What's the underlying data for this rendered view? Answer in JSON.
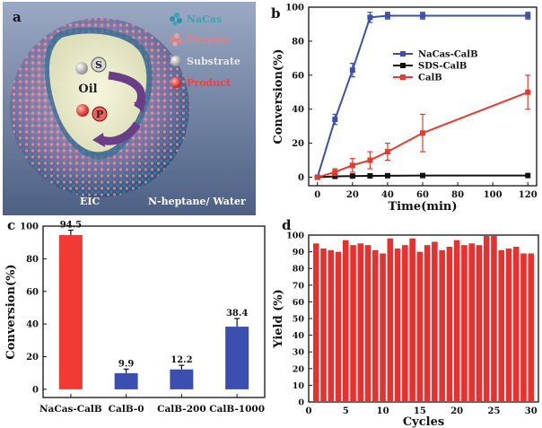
{
  "panel_a": {
    "letter": "a",
    "legend": [
      {
        "label": "NaCas",
        "color": "#3aa7b5",
        "icon": "nacas-protein-icon"
      },
      {
        "label": "Enzyme",
        "color": "#e87f7f",
        "icon": "enzyme-icon"
      },
      {
        "label": "Substrate",
        "color": "#e8e8e8",
        "icon": "substrate-sphere-icon"
      },
      {
        "label": "Product",
        "color": "#ff3b3b",
        "icon": "product-sphere-icon"
      }
    ],
    "s_label": "S",
    "p_label": "P",
    "oil_label": "Oil",
    "eic_label": "EIC",
    "solvent_label": "N-heptane/ Water"
  },
  "chart_data": [
    {
      "panel": "b",
      "type": "line",
      "xlabel": "Time(min)",
      "ylabel": "Conversion(%)",
      "xlim": [
        -5,
        125
      ],
      "ylim": [
        -5,
        100
      ],
      "xticks": [
        0,
        20,
        40,
        60,
        80,
        100,
        120
      ],
      "yticks": [
        0,
        20,
        40,
        60,
        80,
        100
      ],
      "legend_position": "center-right",
      "series": [
        {
          "name": "NaCas-CalB",
          "color": "#3a4fb0",
          "marker": "square",
          "x": [
            0,
            10,
            20,
            30,
            40,
            60,
            120
          ],
          "y": [
            0,
            34,
            63,
            94,
            95,
            95,
            95
          ],
          "err": [
            0,
            3,
            4,
            3,
            2,
            2,
            2
          ]
        },
        {
          "name": "SDS-CalB",
          "color": "#111111",
          "marker": "square",
          "x": [
            0,
            10,
            20,
            30,
            40,
            60,
            120
          ],
          "y": [
            0,
            0.5,
            0.7,
            0.8,
            0.9,
            1,
            1
          ],
          "err": [
            0,
            0,
            0,
            0,
            0,
            0,
            0
          ]
        },
        {
          "name": "CalB",
          "color": "#e83a2d",
          "marker": "square",
          "x": [
            0,
            10,
            20,
            30,
            40,
            60,
            120
          ],
          "y": [
            0,
            3,
            7,
            10,
            15,
            26,
            50
          ],
          "err": [
            0,
            2,
            4,
            5,
            5,
            11,
            10
          ]
        }
      ]
    },
    {
      "panel": "c",
      "type": "bar",
      "xlabel": "",
      "ylabel": "Conversion(%)",
      "ylim": [
        -5,
        100
      ],
      "yticks": [
        0,
        20,
        40,
        60,
        80,
        100
      ],
      "categories": [
        "NaCas-CalB",
        "CalB-0",
        "CalB-200",
        "CalB-1000"
      ],
      "values": [
        94.5,
        9.9,
        12.2,
        38.4
      ],
      "value_labels": [
        "94.5",
        "9.9",
        "12.2",
        "38.4"
      ],
      "errors": [
        3,
        2.5,
        2.5,
        5
      ],
      "colors": [
        "#f03a33",
        "#3a4fb0",
        "#3a4fb0",
        "#3a4fb0"
      ]
    },
    {
      "panel": "d",
      "type": "bar",
      "xlabel": "Cycles",
      "ylabel": "Yield (%)",
      "xlim": [
        0,
        31
      ],
      "ylim": [
        0,
        100
      ],
      "xticks": [
        0,
        5,
        10,
        15,
        20,
        25,
        30
      ],
      "yticks": [
        0,
        10,
        20,
        30,
        40,
        50,
        60,
        70,
        80,
        90,
        100
      ],
      "color": "#e8302f",
      "categories": [
        1,
        2,
        3,
        4,
        5,
        6,
        7,
        8,
        9,
        10,
        11,
        12,
        13,
        14,
        15,
        16,
        17,
        18,
        19,
        20,
        21,
        22,
        23,
        24,
        25,
        26,
        27,
        28,
        29,
        30
      ],
      "values": [
        95,
        92,
        91,
        90,
        97,
        94,
        95,
        94,
        91,
        89,
        98,
        92,
        94,
        98,
        90,
        94,
        96,
        91,
        93,
        97,
        94,
        95,
        94,
        101,
        101,
        91,
        92,
        93,
        89,
        89
      ]
    }
  ]
}
